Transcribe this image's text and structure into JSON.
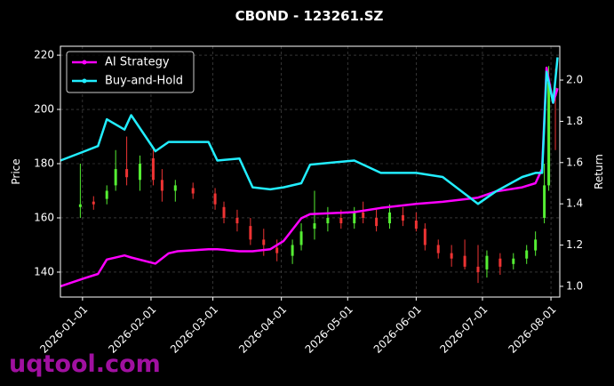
{
  "chart_data": {
    "type": "candlestick",
    "title": "CBOND - 123261.SZ",
    "ylabel": "Price",
    "y2label": "Return",
    "watermark": "uqtool.com",
    "xlim": [
      "2025-12-22",
      "2026-08-05"
    ],
    "xticks": [
      "2026-01-01",
      "2026-02-01",
      "2026-03-01",
      "2026-04-01",
      "2026-05-01",
      "2026-06-01",
      "2026-07-01",
      "2026-08-01"
    ],
    "ylim": [
      130.8,
      223.3
    ],
    "yticks": [
      140,
      160,
      180,
      200,
      220
    ],
    "y2lim": [
      0.948,
      2.164
    ],
    "y2ticks": [
      {
        "value": 1.0,
        "label": "1.0"
      },
      1.2,
      1.4,
      1.6,
      1.8,
      {
        "value": 2.0,
        "label": "2.0"
      }
    ],
    "grid": true,
    "legend": "upper-left",
    "up_color": "#55ee33",
    "down_color": "#ee3333",
    "candles": {
      "x": [
        "2025-12-31",
        "2026-01-06",
        "2026-01-12",
        "2026-01-16",
        "2026-01-21",
        "2026-01-27",
        "2026-02-02",
        "2026-02-06",
        "2026-02-12",
        "2026-02-20",
        "2026-03-02",
        "2026-03-06",
        "2026-03-12",
        "2026-03-18",
        "2026-03-24",
        "2026-03-30",
        "2026-04-06",
        "2026-04-10",
        "2026-04-16",
        "2026-04-22",
        "2026-04-28",
        "2026-05-04",
        "2026-05-08",
        "2026-05-14",
        "2026-05-20",
        "2026-05-26",
        "2026-06-01",
        "2026-06-05",
        "2026-06-11",
        "2026-06-17",
        "2026-06-23",
        "2026-06-29",
        "2026-07-03",
        "2026-07-09",
        "2026-07-15",
        "2026-07-21",
        "2026-07-25",
        "2026-07-29",
        "2026-07-31",
        "2026-08-03"
      ],
      "open": [
        164,
        166,
        167,
        172,
        178,
        174,
        182,
        174,
        170,
        171,
        169,
        164,
        160,
        157,
        152,
        149,
        146,
        150,
        156,
        158,
        160,
        158,
        162,
        160,
        158,
        161,
        159,
        156,
        150,
        147,
        146,
        142,
        141,
        145,
        143,
        145,
        148,
        160,
        172,
        208
      ],
      "high": [
        180,
        168,
        172,
        185,
        190,
        183,
        186,
        178,
        174,
        173,
        171,
        166,
        163,
        160,
        156,
        152,
        152,
        158,
        170,
        164,
        163,
        164,
        166,
        163,
        165,
        164,
        162,
        158,
        152,
        150,
        152,
        150,
        148,
        147,
        147,
        150,
        155,
        180,
        216,
        215
      ],
      "low": [
        160,
        163,
        165,
        170,
        172,
        170,
        172,
        166,
        166,
        167,
        163,
        158,
        155,
        150,
        146,
        144,
        143,
        148,
        152,
        155,
        156,
        156,
        158,
        155,
        156,
        157,
        155,
        148,
        145,
        142,
        141,
        136,
        138,
        139,
        141,
        143,
        146,
        158,
        170,
        185
      ],
      "close": [
        165,
        165,
        170,
        178,
        175,
        180,
        174,
        170,
        172,
        169,
        165,
        160,
        158,
        152,
        150,
        147,
        150,
        155,
        158,
        160,
        158,
        162,
        160,
        157,
        162,
        159,
        156,
        150,
        147,
        145,
        142,
        140,
        146,
        142,
        145,
        148,
        152,
        172,
        210,
        205
      ]
    },
    "x": [
      "2025-12-22",
      "2026-01-02",
      "2026-01-08",
      "2026-01-12",
      "2026-01-20",
      "2026-01-23",
      "2026-02-03",
      "2026-02-09",
      "2026-02-13",
      "2026-02-27",
      "2026-03-03",
      "2026-03-13",
      "2026-03-19",
      "2026-03-27",
      "2026-04-02",
      "2026-04-10",
      "2026-04-14",
      "2026-05-04",
      "2026-05-16",
      "2026-06-01",
      "2026-06-13",
      "2026-06-29",
      "2026-07-07",
      "2026-07-19",
      "2026-07-25",
      "2026-07-28",
      "2026-07-30",
      "2026-08-02",
      "2026-08-04"
    ],
    "series": [
      {
        "name": "AI Strategy",
        "color": "#ff00ff",
        "axis": "y2",
        "values": [
          1.0,
          1.04,
          1.06,
          1.13,
          1.15,
          1.14,
          1.11,
          1.16,
          1.17,
          1.18,
          1.18,
          1.17,
          1.17,
          1.18,
          1.22,
          1.33,
          1.35,
          1.36,
          1.38,
          1.4,
          1.41,
          1.43,
          1.46,
          1.48,
          1.5,
          1.57,
          2.06,
          1.89,
          1.96
        ]
      },
      {
        "name": "Buy-and-Hold",
        "color": "#22eeff",
        "axis": "y2",
        "values": [
          1.61,
          1.655,
          1.68,
          1.81,
          1.76,
          1.83,
          1.655,
          1.7,
          1.7,
          1.7,
          1.61,
          1.62,
          1.48,
          1.47,
          1.48,
          1.5,
          1.59,
          1.61,
          1.55,
          1.55,
          1.53,
          1.4,
          1.46,
          1.53,
          1.55,
          1.55,
          2.04,
          1.89,
          2.11
        ]
      }
    ]
  }
}
